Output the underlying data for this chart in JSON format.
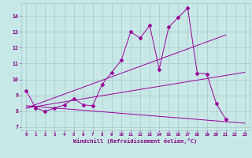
{
  "xlabel": "Windchill (Refroidissement éolien,°C)",
  "bg_color": "#c8e8e8",
  "grid_color": "#a8c8c8",
  "line_color": "#990099",
  "font_color": "#800080",
  "xlim": [
    -0.5,
    23.5
  ],
  "ylim": [
    6.8,
    14.8
  ],
  "xticks": [
    0,
    1,
    2,
    3,
    4,
    5,
    6,
    7,
    8,
    9,
    10,
    11,
    12,
    13,
    14,
    15,
    16,
    17,
    18,
    19,
    20,
    21,
    22,
    23
  ],
  "yticks": [
    7,
    8,
    9,
    10,
    11,
    12,
    13,
    14
  ],
  "zigzag_x": [
    0,
    1,
    2,
    3,
    4,
    5,
    6,
    7,
    8,
    9,
    10,
    11,
    12,
    13,
    14,
    15,
    16,
    17,
    18,
    19,
    20,
    21,
    22,
    23
  ],
  "zigzag_y": [
    9.3,
    8.2,
    8.0,
    8.2,
    8.4,
    8.8,
    8.4,
    8.35,
    9.7,
    10.45,
    11.2,
    13.0,
    12.6,
    13.4,
    10.65,
    13.3,
    13.9,
    14.5,
    10.4,
    10.35,
    8.5,
    7.5,
    null,
    null
  ],
  "trend1_x": [
    0,
    21
  ],
  "trend1_y": [
    8.2,
    12.8
  ],
  "trend2_x": [
    0,
    23
  ],
  "trend2_y": [
    8.35,
    7.25
  ],
  "trend3_x": [
    0,
    23
  ],
  "trend3_y": [
    8.2,
    10.45
  ]
}
